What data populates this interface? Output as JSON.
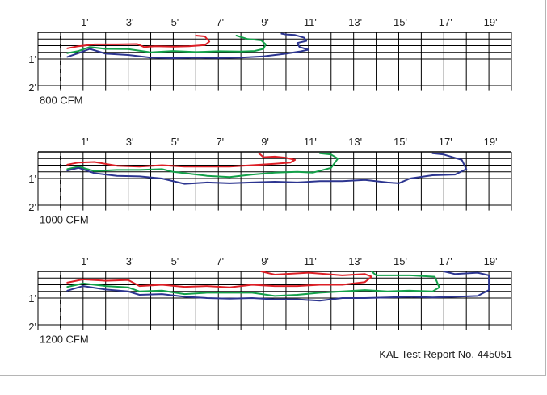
{
  "footer_note": "KAL Test Report No. 445051",
  "colors": {
    "grid": "#000000",
    "red": "#dd1f26",
    "green": "#13a049",
    "blue": "#2c3590"
  },
  "chart_data": [
    {
      "type": "line",
      "title": "800 CFM",
      "x_tick_labels": [
        "1'",
        "3'",
        "5'",
        "7'",
        "9'",
        "11'",
        "13'",
        "15'",
        "17'",
        "19'"
      ],
      "y_tick_labels": [
        "1'",
        "2'"
      ],
      "xlim": [
        -1,
        20
      ],
      "ylim": [
        0,
        2.2
      ],
      "series": [
        {
          "color": "red",
          "x": [
            0.3,
            0.8,
            1.5,
            2.5,
            3.4,
            3.7,
            4.2,
            5.0,
            5.7,
            6.4,
            6.6,
            6.4,
            6.0
          ],
          "y": [
            0.6,
            0.52,
            0.45,
            0.45,
            0.44,
            0.55,
            0.52,
            0.54,
            0.52,
            0.48,
            0.35,
            0.15,
            0.12
          ]
        },
        {
          "color": "green",
          "x": [
            0.3,
            0.8,
            1.3,
            2.0,
            3.0,
            4.0,
            5.0,
            6.0,
            7.0,
            8.0,
            8.6,
            9.0,
            9.1,
            8.9,
            8.3,
            7.8
          ],
          "y": [
            0.78,
            0.7,
            0.55,
            0.62,
            0.63,
            0.75,
            0.7,
            0.74,
            0.71,
            0.72,
            0.7,
            0.62,
            0.45,
            0.3,
            0.25,
            0.12
          ]
        },
        {
          "color": "blue",
          "x": [
            0.3,
            0.8,
            1.3,
            2.0,
            3.0,
            4.0,
            5.0,
            6.0,
            7.0,
            8.0,
            9.0,
            10.0,
            10.6,
            11.0,
            10.6,
            10.5,
            10.9,
            10.8,
            10.4,
            10.0,
            9.8
          ],
          "y": [
            0.92,
            0.78,
            0.62,
            0.8,
            0.85,
            0.95,
            0.97,
            0.95,
            0.96,
            0.95,
            0.9,
            0.8,
            0.72,
            0.65,
            0.55,
            0.4,
            0.32,
            0.2,
            0.1,
            0.08,
            0.05
          ]
        }
      ]
    },
    {
      "type": "line",
      "title": "1000 CFM",
      "x_tick_labels": [
        "1'",
        "3'",
        "5'",
        "7'",
        "9'",
        "11'",
        "13'",
        "15'",
        "17'",
        "19'"
      ],
      "y_tick_labels": [
        "1'",
        "2'"
      ],
      "xlim": [
        -1,
        20
      ],
      "ylim": [
        0,
        2.2
      ],
      "series": [
        {
          "color": "red",
          "x": [
            0.3,
            0.8,
            1.5,
            2.5,
            3.5,
            4.5,
            5.5,
            6.5,
            7.5,
            8.5,
            9.5,
            10.2,
            10.4,
            10.0,
            9.5,
            9.0,
            8.8
          ],
          "y": [
            0.48,
            0.4,
            0.38,
            0.52,
            0.55,
            0.5,
            0.55,
            0.55,
            0.55,
            0.5,
            0.45,
            0.4,
            0.3,
            0.22,
            0.18,
            0.2,
            0.05
          ]
        },
        {
          "color": "green",
          "x": [
            0.3,
            0.8,
            1.5,
            2.5,
            3.5,
            4.5,
            5.0,
            5.5,
            6.5,
            7.5,
            8.5,
            9.5,
            10.5,
            11.2,
            12.0,
            12.3,
            12.0,
            11.5
          ],
          "y": [
            0.65,
            0.55,
            0.72,
            0.68,
            0.68,
            0.65,
            0.75,
            0.8,
            0.9,
            0.95,
            0.85,
            0.78,
            0.75,
            0.78,
            0.6,
            0.25,
            0.1,
            0.05
          ]
        },
        {
          "color": "blue",
          "x": [
            0.3,
            0.8,
            1.5,
            2.5,
            3.5,
            4.5,
            5.5,
            6.5,
            7.5,
            8.5,
            9.5,
            10.5,
            11.5,
            12.5,
            13.5,
            14.5,
            15.0,
            15.5,
            16.5,
            17.5,
            18.0,
            17.8,
            17.0,
            16.5
          ],
          "y": [
            0.7,
            0.6,
            0.8,
            0.9,
            0.92,
            1.0,
            1.2,
            1.15,
            1.18,
            1.15,
            1.12,
            1.15,
            1.1,
            1.1,
            1.05,
            1.15,
            1.18,
            1.0,
            0.88,
            0.85,
            0.65,
            0.3,
            0.1,
            0.05
          ]
        }
      ]
    },
    {
      "type": "line",
      "title": "1200 CFM",
      "x_tick_labels": [
        "1'",
        "3'",
        "5'",
        "7'",
        "9'",
        "11'",
        "13'",
        "15'",
        "17'",
        "19'"
      ],
      "y_tick_labels": [
        "1'",
        "2'"
      ],
      "xlim": [
        -1,
        20
      ],
      "ylim": [
        0,
        2.2
      ],
      "series": [
        {
          "color": "red",
          "x": [
            0.3,
            1.0,
            2.0,
            3.0,
            3.5,
            4.5,
            5.5,
            6.5,
            7.5,
            8.5,
            9.5,
            10.5,
            11.5,
            12.5,
            13.0,
            13.5,
            13.8,
            13.5,
            12.5,
            11.0,
            9.5,
            8.9
          ],
          "y": [
            0.42,
            0.3,
            0.35,
            0.32,
            0.55,
            0.5,
            0.58,
            0.55,
            0.6,
            0.5,
            0.55,
            0.55,
            0.5,
            0.5,
            0.45,
            0.4,
            0.2,
            0.1,
            0.15,
            0.05,
            0.12,
            0.0
          ]
        },
        {
          "color": "green",
          "x": [
            0.3,
            1.0,
            2.0,
            3.0,
            3.5,
            4.5,
            5.5,
            6.5,
            7.5,
            8.5,
            9.5,
            10.5,
            11.5,
            12.5,
            13.5,
            14.5,
            15.5,
            16.5,
            16.8,
            16.6,
            15.5,
            14.0,
            13.8
          ],
          "y": [
            0.58,
            0.45,
            0.55,
            0.6,
            0.75,
            0.72,
            0.85,
            0.8,
            0.8,
            0.8,
            0.92,
            0.88,
            0.8,
            0.75,
            0.7,
            0.75,
            0.72,
            0.75,
            0.6,
            0.2,
            0.15,
            0.15,
            0.0
          ]
        },
        {
          "color": "blue",
          "x": [
            0.3,
            1.0,
            2.0,
            3.0,
            3.5,
            4.5,
            5.5,
            6.5,
            7.5,
            8.5,
            9.5,
            10.5,
            11.5,
            12.5,
            13.5,
            14.5,
            15.5,
            16.5,
            17.5,
            18.5,
            19.0,
            19.0,
            18.5,
            17.5,
            17.0
          ],
          "y": [
            0.72,
            0.55,
            0.68,
            0.75,
            0.88,
            0.85,
            0.95,
            1.0,
            1.02,
            1.0,
            1.05,
            1.05,
            1.1,
            1.0,
            1.0,
            0.98,
            0.95,
            0.98,
            0.95,
            0.92,
            0.7,
            0.15,
            0.05,
            0.1,
            0.0
          ]
        }
      ]
    }
  ]
}
